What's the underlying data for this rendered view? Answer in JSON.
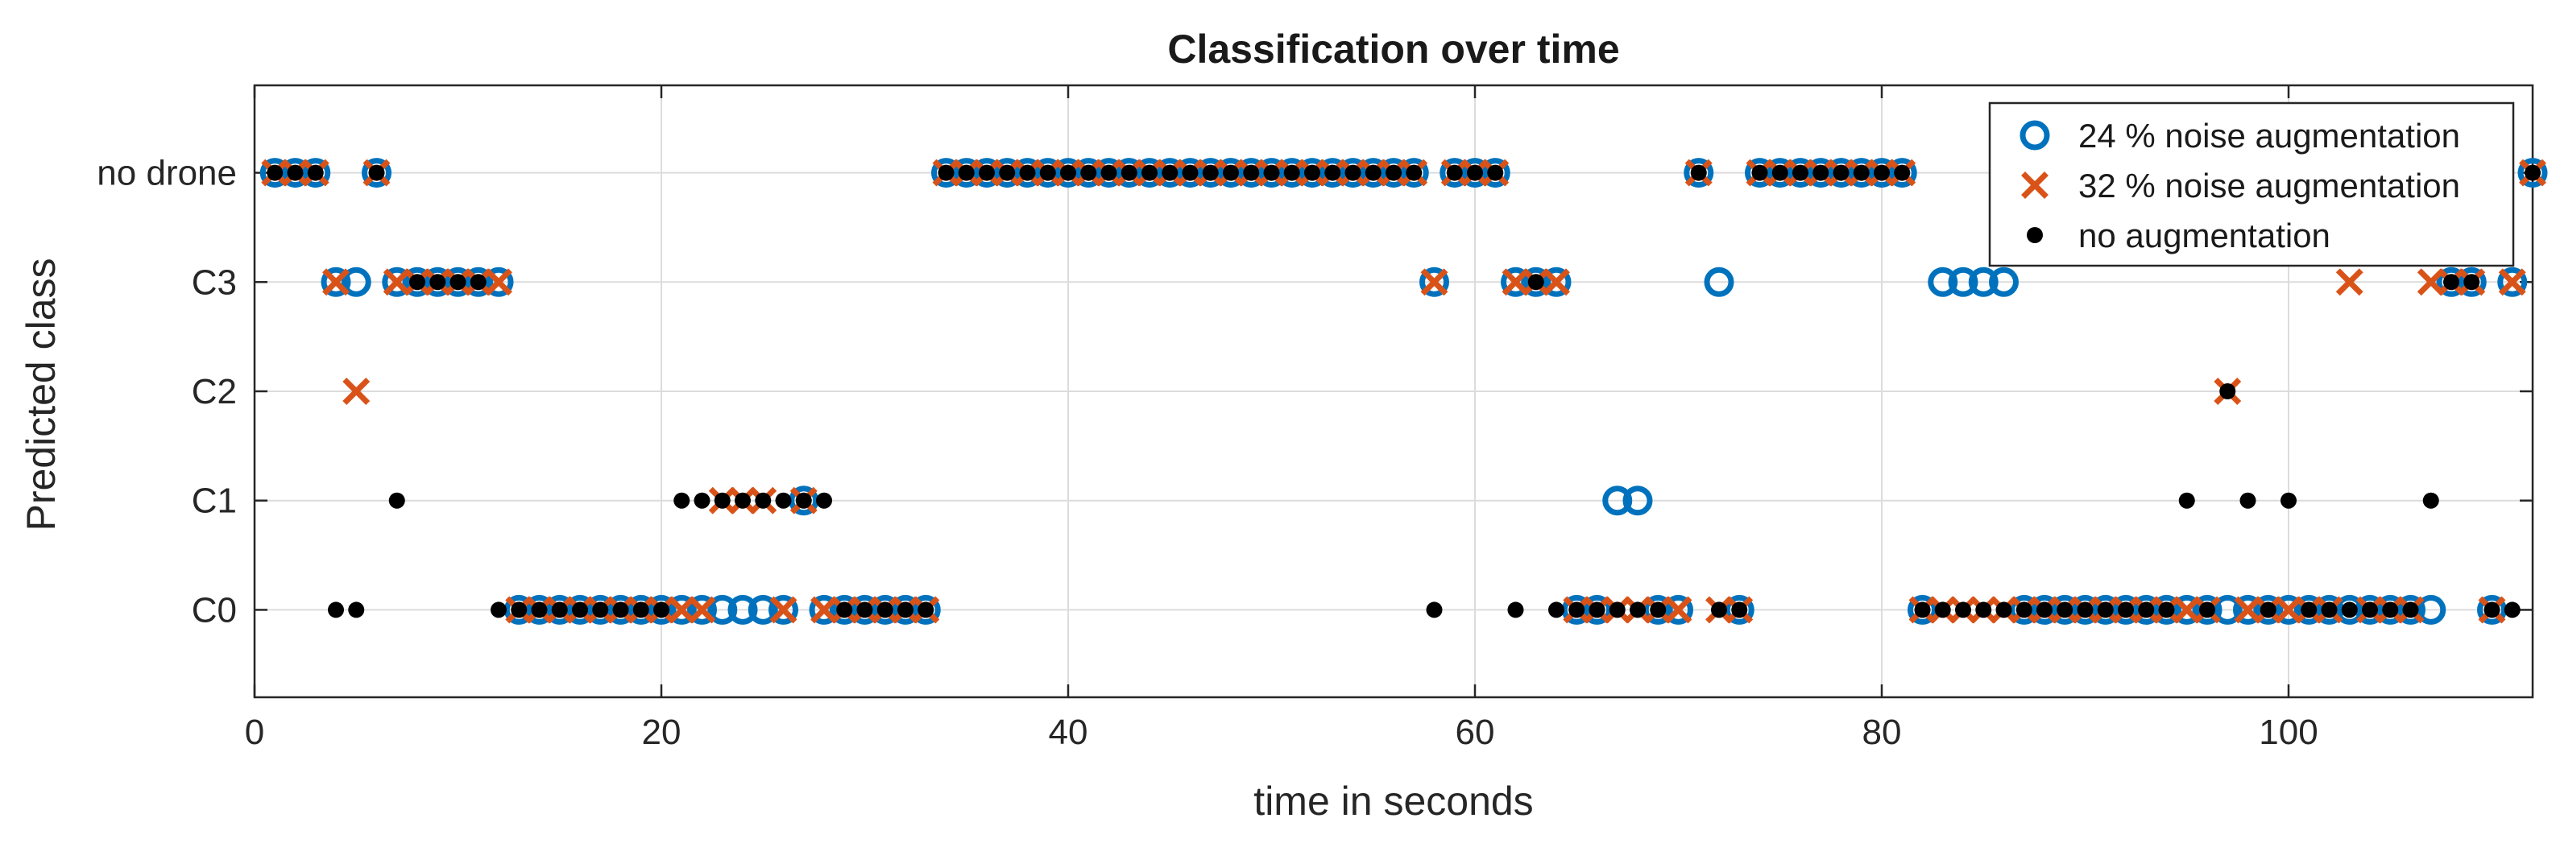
{
  "chart_data": {
    "type": "scatter",
    "title": "Classification over time",
    "xlabel": "time in seconds",
    "ylabel": "Predicted class",
    "xlim": [
      0,
      112
    ],
    "ylim": [
      -0.8,
      4.8
    ],
    "x_ticks": [
      0,
      20,
      40,
      60,
      80,
      100
    ],
    "categories": [
      "C0",
      "C1",
      "C2",
      "C3",
      "no drone"
    ],
    "grid": true,
    "legend_position": "top-right",
    "series": [
      {
        "name": "24 % noise augmentation",
        "marker": "circle-open",
        "color": "#0072BD",
        "points": [
          [
            1,
            4
          ],
          [
            2,
            4
          ],
          [
            3,
            4
          ],
          [
            4,
            3
          ],
          [
            5,
            3
          ],
          [
            6,
            4
          ],
          [
            7,
            3
          ],
          [
            8,
            3
          ],
          [
            9,
            3
          ],
          [
            10,
            3
          ],
          [
            11,
            3
          ],
          [
            12,
            3
          ],
          [
            13,
            0
          ],
          [
            14,
            0
          ],
          [
            15,
            0
          ],
          [
            16,
            0
          ],
          [
            17,
            0
          ],
          [
            18,
            0
          ],
          [
            19,
            0
          ],
          [
            20,
            0
          ],
          [
            21,
            0
          ],
          [
            22,
            0
          ],
          [
            23,
            0
          ],
          [
            24,
            0
          ],
          [
            25,
            0
          ],
          [
            26,
            0
          ],
          [
            27,
            1
          ],
          [
            28,
            0
          ],
          [
            29,
            0
          ],
          [
            30,
            0
          ],
          [
            31,
            0
          ],
          [
            32,
            0
          ],
          [
            33,
            0
          ],
          [
            34,
            4
          ],
          [
            35,
            4
          ],
          [
            36,
            4
          ],
          [
            37,
            4
          ],
          [
            38,
            4
          ],
          [
            39,
            4
          ],
          [
            40,
            4
          ],
          [
            41,
            4
          ],
          [
            42,
            4
          ],
          [
            43,
            4
          ],
          [
            44,
            4
          ],
          [
            45,
            4
          ],
          [
            46,
            4
          ],
          [
            47,
            4
          ],
          [
            48,
            4
          ],
          [
            49,
            4
          ],
          [
            50,
            4
          ],
          [
            51,
            4
          ],
          [
            52,
            4
          ],
          [
            53,
            4
          ],
          [
            54,
            4
          ],
          [
            55,
            4
          ],
          [
            56,
            4
          ],
          [
            57,
            4
          ],
          [
            58,
            3
          ],
          [
            59,
            4
          ],
          [
            60,
            4
          ],
          [
            61,
            4
          ],
          [
            62,
            3
          ],
          [
            63,
            3
          ],
          [
            64,
            3
          ],
          [
            65,
            0
          ],
          [
            66,
            0
          ],
          [
            67,
            1
          ],
          [
            68,
            1
          ],
          [
            69,
            0
          ],
          [
            70,
            0
          ],
          [
            71,
            4
          ],
          [
            72,
            3
          ],
          [
            73,
            0
          ],
          [
            74,
            4
          ],
          [
            75,
            4
          ],
          [
            76,
            4
          ],
          [
            77,
            4
          ],
          [
            78,
            4
          ],
          [
            79,
            4
          ],
          [
            80,
            4
          ],
          [
            81,
            4
          ],
          [
            82,
            0
          ],
          [
            83,
            3
          ],
          [
            84,
            3
          ],
          [
            85,
            3
          ],
          [
            86,
            3
          ],
          [
            87,
            0
          ],
          [
            88,
            0
          ],
          [
            89,
            0
          ],
          [
            90,
            0
          ],
          [
            91,
            0
          ],
          [
            92,
            0
          ],
          [
            93,
            0
          ],
          [
            94,
            0
          ],
          [
            95,
            0
          ],
          [
            96,
            0
          ],
          [
            97,
            0
          ],
          [
            98,
            0
          ],
          [
            99,
            0
          ],
          [
            100,
            0
          ],
          [
            101,
            0
          ],
          [
            102,
            0
          ],
          [
            103,
            0
          ],
          [
            104,
            0
          ],
          [
            105,
            0
          ],
          [
            106,
            0
          ],
          [
            107,
            0
          ],
          [
            108,
            3
          ],
          [
            109,
            3
          ],
          [
            110,
            0
          ],
          [
            111,
            3
          ],
          [
            112,
            4
          ]
        ]
      },
      {
        "name": "32 % noise augmentation",
        "marker": "x",
        "color": "#D95319",
        "points": [
          [
            1,
            4
          ],
          [
            2,
            4
          ],
          [
            3,
            4
          ],
          [
            4,
            3
          ],
          [
            5,
            2
          ],
          [
            6,
            4
          ],
          [
            7,
            3
          ],
          [
            8,
            3
          ],
          [
            9,
            3
          ],
          [
            10,
            3
          ],
          [
            11,
            3
          ],
          [
            12,
            3
          ],
          [
            13,
            0
          ],
          [
            14,
            0
          ],
          [
            15,
            0
          ],
          [
            16,
            0
          ],
          [
            17,
            0
          ],
          [
            18,
            0
          ],
          [
            19,
            0
          ],
          [
            20,
            0
          ],
          [
            21,
            0
          ],
          [
            22,
            0
          ],
          [
            23,
            1
          ],
          [
            24,
            1
          ],
          [
            25,
            1
          ],
          [
            26,
            0
          ],
          [
            27,
            1
          ],
          [
            28,
            0
          ],
          [
            29,
            0
          ],
          [
            30,
            0
          ],
          [
            31,
            0
          ],
          [
            32,
            0
          ],
          [
            33,
            0
          ],
          [
            34,
            4
          ],
          [
            35,
            4
          ],
          [
            36,
            4
          ],
          [
            37,
            4
          ],
          [
            38,
            4
          ],
          [
            39,
            4
          ],
          [
            40,
            4
          ],
          [
            41,
            4
          ],
          [
            42,
            4
          ],
          [
            43,
            4
          ],
          [
            44,
            4
          ],
          [
            45,
            4
          ],
          [
            46,
            4
          ],
          [
            47,
            4
          ],
          [
            48,
            4
          ],
          [
            49,
            4
          ],
          [
            50,
            4
          ],
          [
            51,
            4
          ],
          [
            52,
            4
          ],
          [
            53,
            4
          ],
          [
            54,
            4
          ],
          [
            55,
            4
          ],
          [
            56,
            4
          ],
          [
            57,
            4
          ],
          [
            58,
            3
          ],
          [
            59,
            4
          ],
          [
            60,
            4
          ],
          [
            61,
            4
          ],
          [
            62,
            3
          ],
          [
            63,
            3
          ],
          [
            64,
            3
          ],
          [
            65,
            0
          ],
          [
            66,
            0
          ],
          [
            67,
            0
          ],
          [
            68,
            0
          ],
          [
            69,
            0
          ],
          [
            70,
            0
          ],
          [
            71,
            4
          ],
          [
            72,
            0
          ],
          [
            73,
            0
          ],
          [
            74,
            4
          ],
          [
            75,
            4
          ],
          [
            76,
            4
          ],
          [
            77,
            4
          ],
          [
            78,
            4
          ],
          [
            79,
            4
          ],
          [
            80,
            4
          ],
          [
            81,
            4
          ],
          [
            82,
            0
          ],
          [
            83,
            0
          ],
          [
            84,
            0
          ],
          [
            85,
            0
          ],
          [
            86,
            0
          ],
          [
            87,
            0
          ],
          [
            88,
            0
          ],
          [
            89,
            0
          ],
          [
            90,
            0
          ],
          [
            91,
            0
          ],
          [
            92,
            0
          ],
          [
            93,
            0
          ],
          [
            94,
            0
          ],
          [
            95,
            0
          ],
          [
            96,
            0
          ],
          [
            97,
            2
          ],
          [
            98,
            0
          ],
          [
            99,
            0
          ],
          [
            100,
            0
          ],
          [
            101,
            0
          ],
          [
            102,
            0
          ],
          [
            103,
            3
          ],
          [
            104,
            0
          ],
          [
            105,
            0
          ],
          [
            106,
            0
          ],
          [
            107,
            3
          ],
          [
            108,
            3
          ],
          [
            109,
            3
          ],
          [
            110,
            0
          ],
          [
            111,
            3
          ],
          [
            112,
            4
          ]
        ]
      },
      {
        "name": "no augmentation",
        "marker": "dot",
        "color": "#000000",
        "points": [
          [
            1,
            4
          ],
          [
            2,
            4
          ],
          [
            3,
            4
          ],
          [
            4,
            0
          ],
          [
            5,
            0
          ],
          [
            6,
            4
          ],
          [
            7,
            1
          ],
          [
            8,
            3
          ],
          [
            9,
            3
          ],
          [
            10,
            3
          ],
          [
            11,
            3
          ],
          [
            12,
            0
          ],
          [
            13,
            0
          ],
          [
            14,
            0
          ],
          [
            15,
            0
          ],
          [
            16,
            0
          ],
          [
            17,
            0
          ],
          [
            18,
            0
          ],
          [
            19,
            0
          ],
          [
            20,
            0
          ],
          [
            21,
            1
          ],
          [
            22,
            1
          ],
          [
            23,
            1
          ],
          [
            24,
            1
          ],
          [
            25,
            1
          ],
          [
            26,
            1
          ],
          [
            27,
            1
          ],
          [
            28,
            1
          ],
          [
            29,
            0
          ],
          [
            30,
            0
          ],
          [
            31,
            0
          ],
          [
            32,
            0
          ],
          [
            33,
            0
          ],
          [
            34,
            4
          ],
          [
            35,
            4
          ],
          [
            36,
            4
          ],
          [
            37,
            4
          ],
          [
            38,
            4
          ],
          [
            39,
            4
          ],
          [
            40,
            4
          ],
          [
            41,
            4
          ],
          [
            42,
            4
          ],
          [
            43,
            4
          ],
          [
            44,
            4
          ],
          [
            45,
            4
          ],
          [
            46,
            4
          ],
          [
            47,
            4
          ],
          [
            48,
            4
          ],
          [
            49,
            4
          ],
          [
            50,
            4
          ],
          [
            51,
            4
          ],
          [
            52,
            4
          ],
          [
            53,
            4
          ],
          [
            54,
            4
          ],
          [
            55,
            4
          ],
          [
            56,
            4
          ],
          [
            57,
            4
          ],
          [
            58,
            0
          ],
          [
            59,
            4
          ],
          [
            60,
            4
          ],
          [
            61,
            4
          ],
          [
            62,
            0
          ],
          [
            63,
            3
          ],
          [
            64,
            0
          ],
          [
            65,
            0
          ],
          [
            66,
            0
          ],
          [
            67,
            0
          ],
          [
            68,
            0
          ],
          [
            69,
            0
          ],
          [
            71,
            4
          ],
          [
            72,
            0
          ],
          [
            73,
            0
          ],
          [
            74,
            4
          ],
          [
            75,
            4
          ],
          [
            76,
            4
          ],
          [
            77,
            4
          ],
          [
            78,
            4
          ],
          [
            79,
            4
          ],
          [
            80,
            4
          ],
          [
            81,
            4
          ],
          [
            82,
            0
          ],
          [
            83,
            0
          ],
          [
            84,
            0
          ],
          [
            85,
            0
          ],
          [
            86,
            0
          ],
          [
            87,
            0
          ],
          [
            88,
            0
          ],
          [
            89,
            0
          ],
          [
            90,
            0
          ],
          [
            91,
            0
          ],
          [
            92,
            0
          ],
          [
            93,
            0
          ],
          [
            94,
            0
          ],
          [
            95,
            1
          ],
          [
            96,
            0
          ],
          [
            97,
            2
          ],
          [
            98,
            1
          ],
          [
            99,
            0
          ],
          [
            100,
            1
          ],
          [
            101,
            0
          ],
          [
            102,
            0
          ],
          [
            103,
            0
          ],
          [
            104,
            0
          ],
          [
            105,
            0
          ],
          [
            106,
            0
          ],
          [
            107,
            1
          ],
          [
            108,
            3
          ],
          [
            109,
            3
          ],
          [
            110,
            0
          ],
          [
            111,
            0
          ],
          [
            112,
            4
          ]
        ]
      }
    ]
  }
}
